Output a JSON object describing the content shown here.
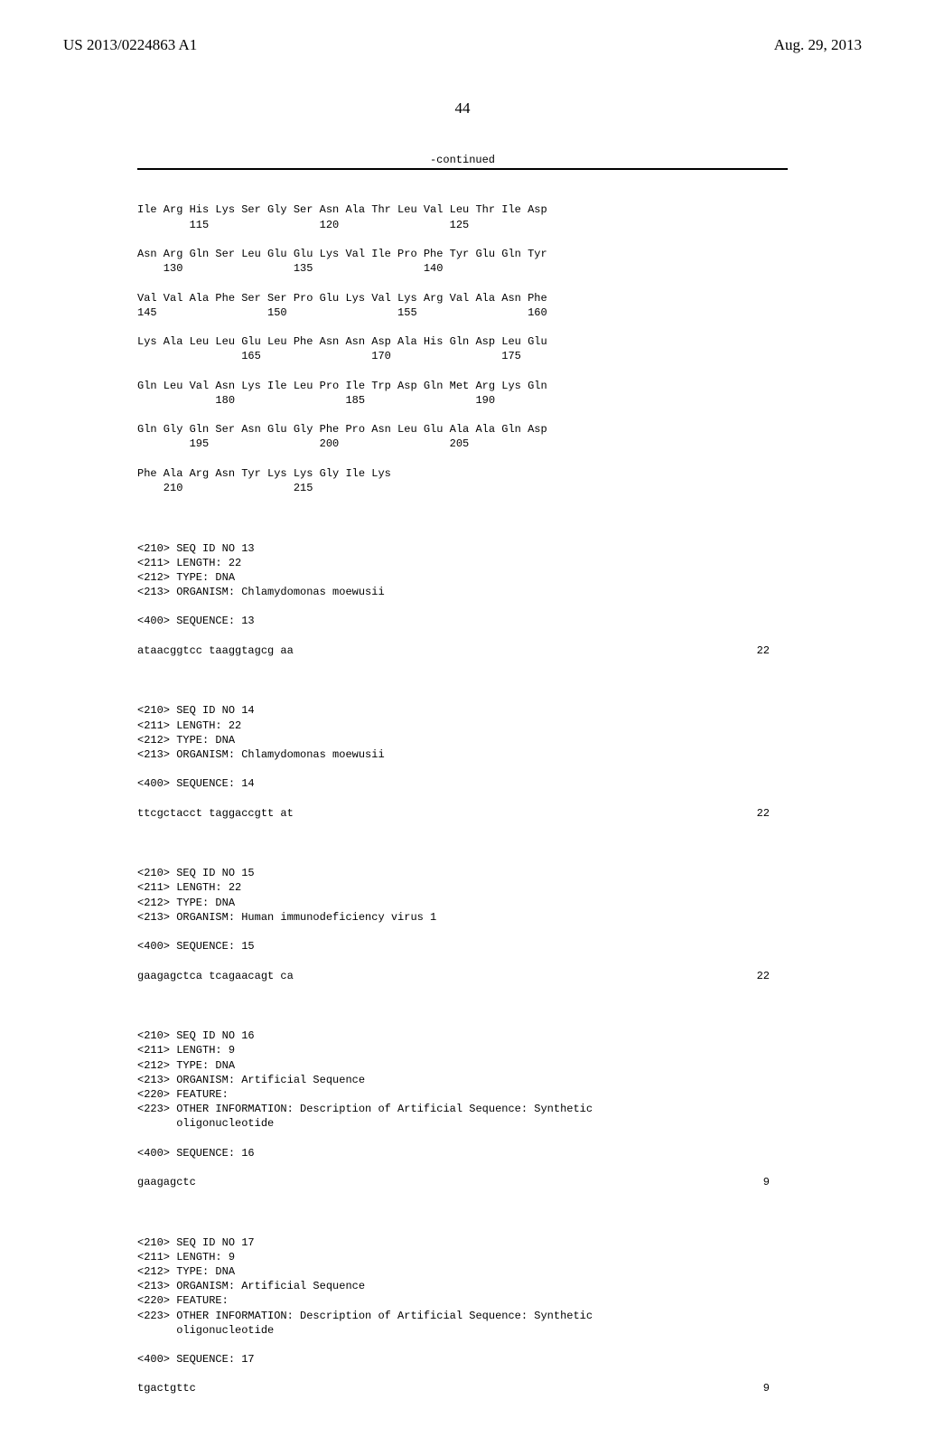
{
  "header": {
    "left": "US 2013/0224863 A1",
    "right": "Aug. 29, 2013"
  },
  "page_number": "44",
  "continued_label": "-continued",
  "protein_rows": [
    {
      "aa": "Ile Arg His Lys Ser Gly Ser Asn Ala Thr Leu Val Leu Thr Ile Asp",
      "nums": "        115                 120                 125"
    },
    {
      "aa": "Asn Arg Gln Ser Leu Glu Glu Lys Val Ile Pro Phe Tyr Glu Gln Tyr",
      "nums": "    130                 135                 140"
    },
    {
      "aa": "Val Val Ala Phe Ser Ser Pro Glu Lys Val Lys Arg Val Ala Asn Phe",
      "nums": "145                 150                 155                 160"
    },
    {
      "aa": "Lys Ala Leu Leu Glu Leu Phe Asn Asn Asp Ala His Gln Asp Leu Glu",
      "nums": "                165                 170                 175"
    },
    {
      "aa": "Gln Leu Val Asn Lys Ile Leu Pro Ile Trp Asp Gln Met Arg Lys Gln",
      "nums": "            180                 185                 190"
    },
    {
      "aa": "Gln Gly Gln Ser Asn Glu Gly Phe Pro Asn Leu Glu Ala Ala Gln Asp",
      "nums": "        195                 200                 205"
    },
    {
      "aa": "Phe Ala Arg Asn Tyr Lys Lys Gly Ile Lys",
      "nums": "    210                 215"
    }
  ],
  "seq13": {
    "meta": [
      "<210> SEQ ID NO 13",
      "<211> LENGTH: 22",
      "<212> TYPE: DNA",
      "<213> ORGANISM: Chlamydomonas moewusii"
    ],
    "label": "<400> SEQUENCE: 13",
    "sequence": "ataacggtcc taaggtagcg aa",
    "length": "22"
  },
  "seq14": {
    "meta": [
      "<210> SEQ ID NO 14",
      "<211> LENGTH: 22",
      "<212> TYPE: DNA",
      "<213> ORGANISM: Chlamydomonas moewusii"
    ],
    "label": "<400> SEQUENCE: 14",
    "sequence": "ttcgctacct taggaccgtt at",
    "length": "22"
  },
  "seq15": {
    "meta": [
      "<210> SEQ ID NO 15",
      "<211> LENGTH: 22",
      "<212> TYPE: DNA",
      "<213> ORGANISM: Human immunodeficiency virus 1"
    ],
    "label": "<400> SEQUENCE: 15",
    "sequence": "gaagagctca tcagaacagt ca",
    "length": "22"
  },
  "seq16": {
    "meta": [
      "<210> SEQ ID NO 16",
      "<211> LENGTH: 9",
      "<212> TYPE: DNA",
      "<213> ORGANISM: Artificial Sequence",
      "<220> FEATURE:",
      "<223> OTHER INFORMATION: Description of Artificial Sequence: Synthetic",
      "      oligonucleotide"
    ],
    "label": "<400> SEQUENCE: 16",
    "sequence": "gaagagctc",
    "length": "9"
  },
  "seq17": {
    "meta": [
      "<210> SEQ ID NO 17",
      "<211> LENGTH: 9",
      "<212> TYPE: DNA",
      "<213> ORGANISM: Artificial Sequence",
      "<220> FEATURE:",
      "<223> OTHER INFORMATION: Description of Artificial Sequence: Synthetic",
      "      oligonucleotide"
    ],
    "label": "<400> SEQUENCE: 17",
    "sequence": "tgactgttc",
    "length": "9"
  }
}
